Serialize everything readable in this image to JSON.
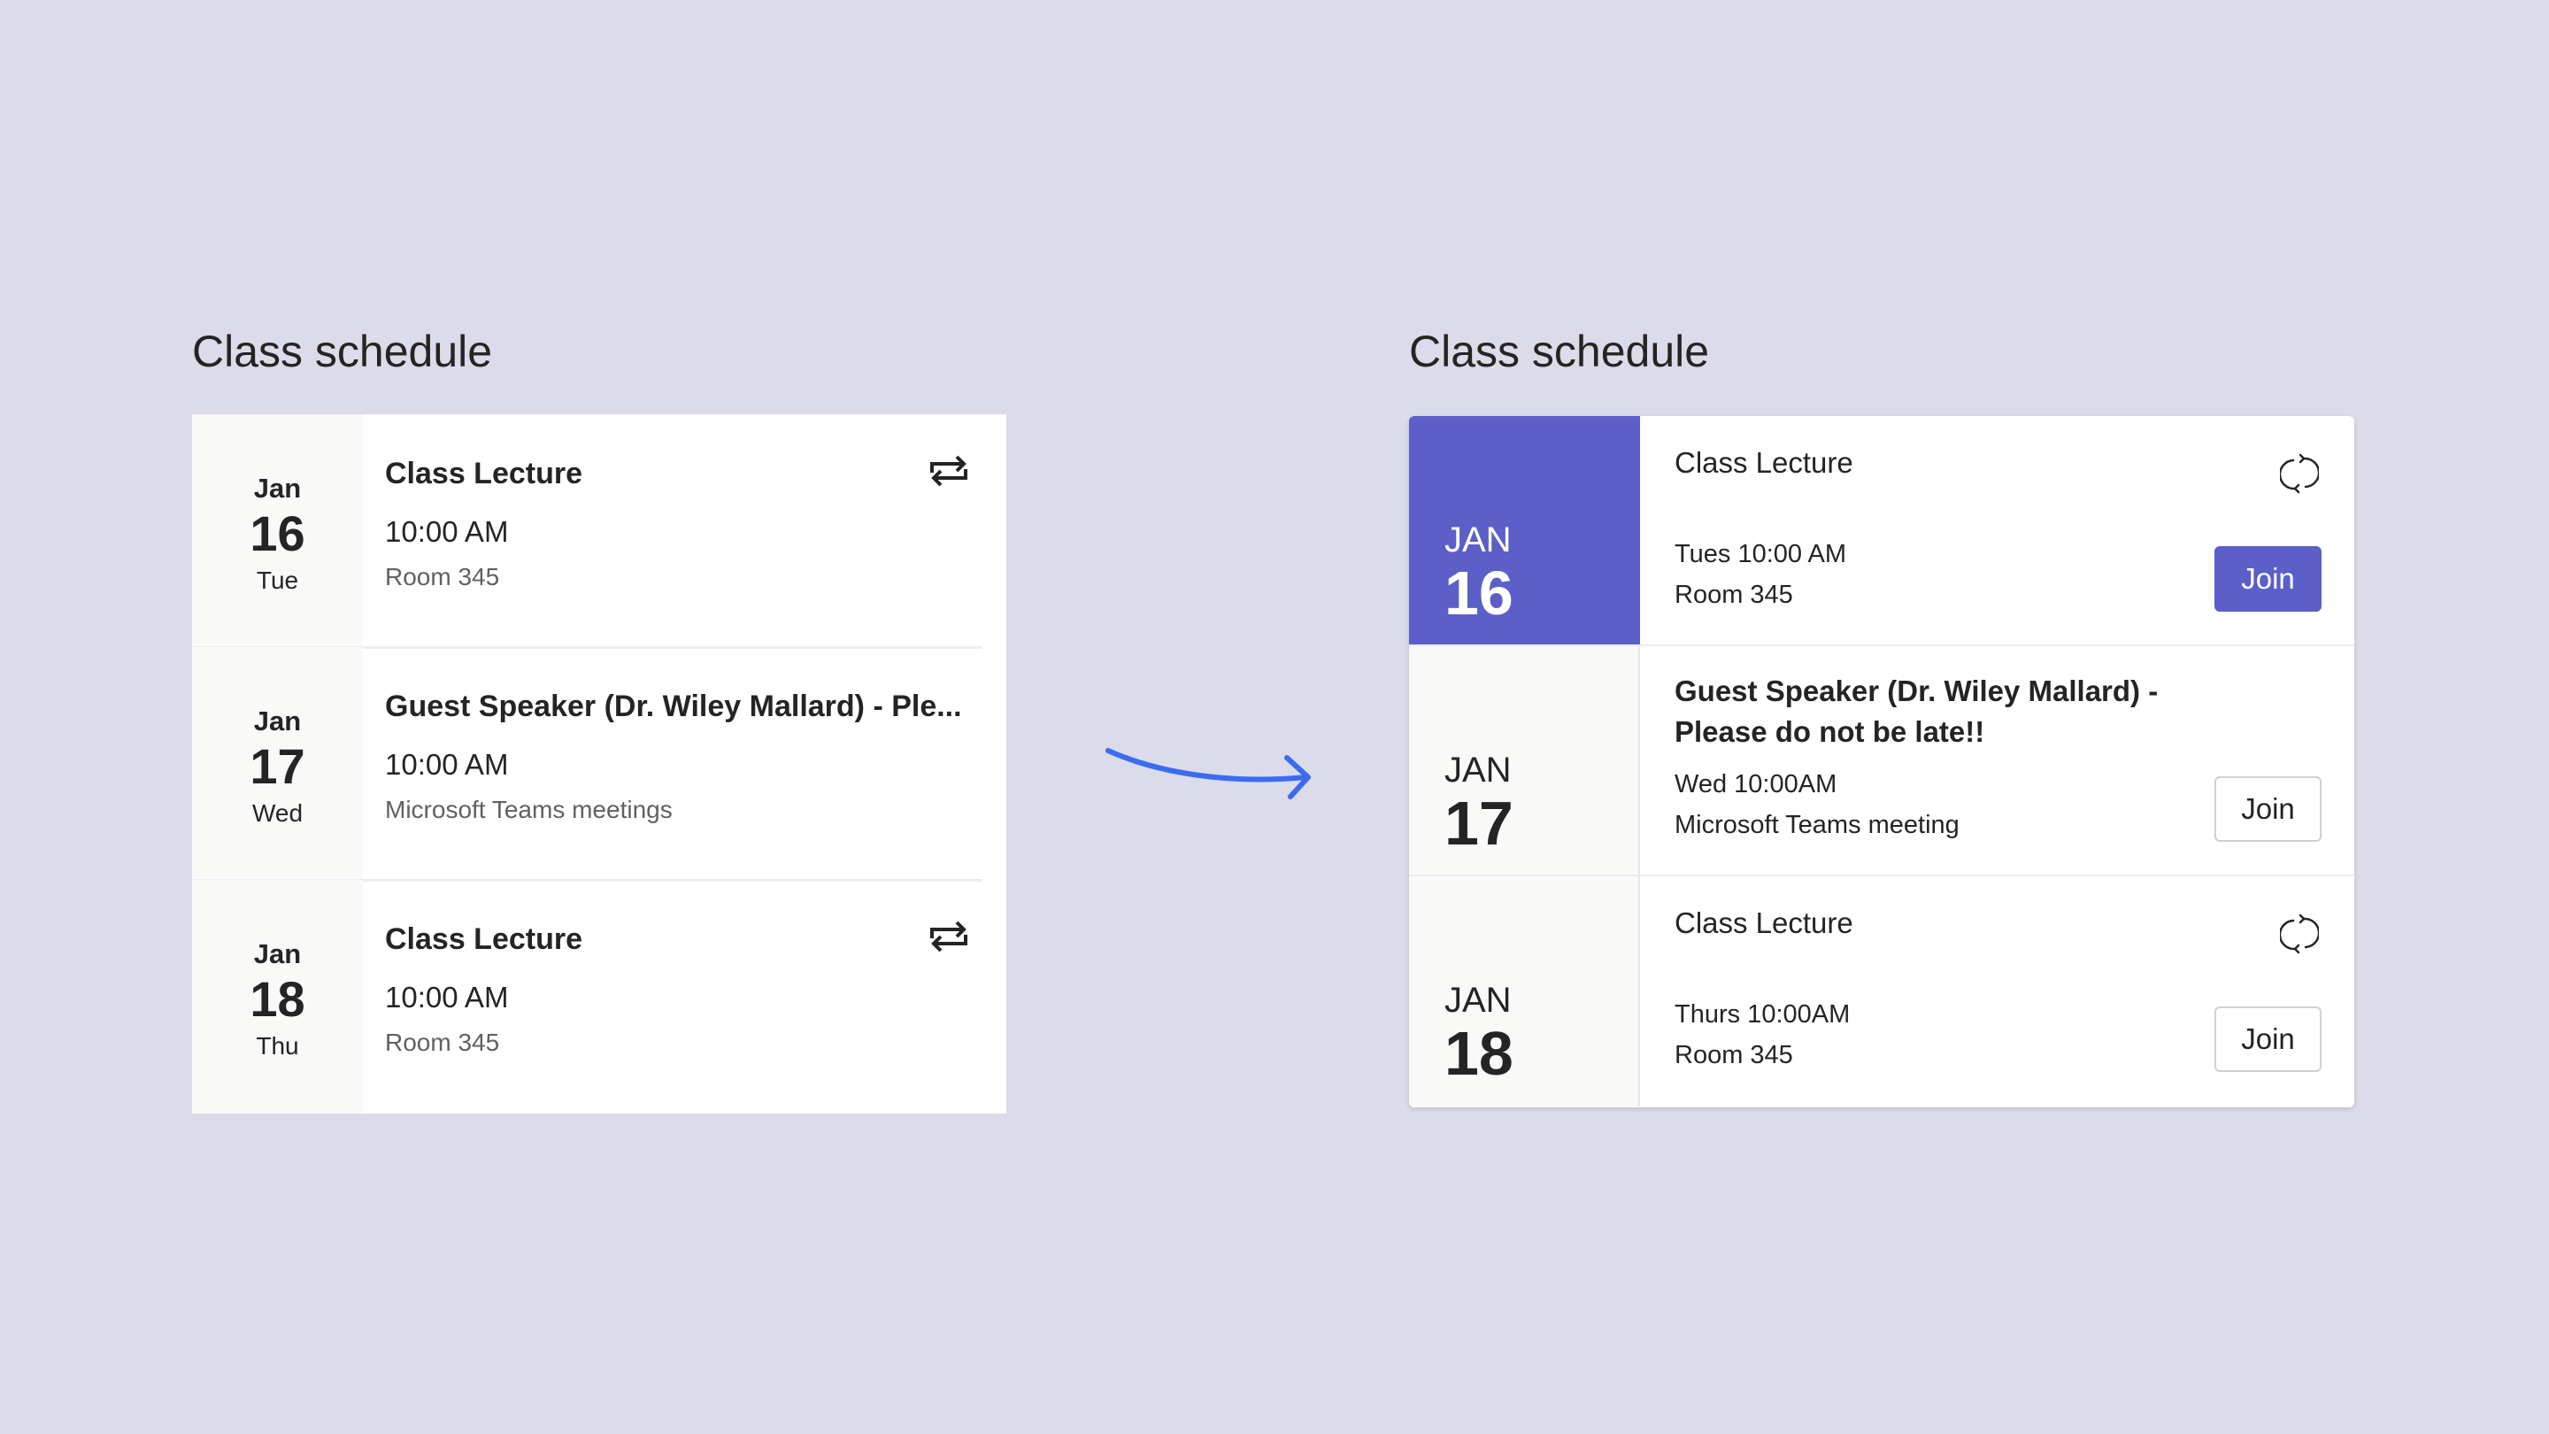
{
  "left": {
    "title": "Class schedule",
    "items": [
      {
        "month": "Jan",
        "day": "16",
        "weekday": "Tue",
        "title": "Class Lecture",
        "time": "10:00 AM",
        "location": "Room 345",
        "icon": "recurring-icon"
      },
      {
        "month": "Jan",
        "day": "17",
        "weekday": "Wed",
        "title": "Guest Speaker (Dr. Wiley Mallard) - Ple...",
        "time": "10:00 AM",
        "location": "Microsoft Teams meetings",
        "icon": null
      },
      {
        "month": "Jan",
        "day": "18",
        "weekday": "Thu",
        "title": "Class Lecture",
        "time": "10:00 AM",
        "location": "Room 345",
        "icon": "recurring-icon"
      }
    ]
  },
  "right": {
    "title": "Class schedule",
    "accent": "#5b5fc7",
    "items": [
      {
        "month": "JAN",
        "day": "16",
        "title": "Class Lecture",
        "when": "Tues 10:00 AM",
        "location": "Room 345",
        "join": "Join",
        "active": true,
        "icon": "sync-icon"
      },
      {
        "month": "JAN",
        "day": "17",
        "title": "Guest Speaker (Dr. Wiley Mallard) - Please do not be late!!",
        "when": "Wed 10:00AM",
        "location": "Microsoft Teams meeting",
        "join": "Join",
        "active": false,
        "icon": null
      },
      {
        "month": "JAN",
        "day": "18",
        "title": "Class Lecture",
        "when": "Thurs 10:00AM",
        "location": "Room 345",
        "join": "Join",
        "active": false,
        "icon": "sync-icon"
      }
    ]
  },
  "arrow_color": "#3b6cf0"
}
